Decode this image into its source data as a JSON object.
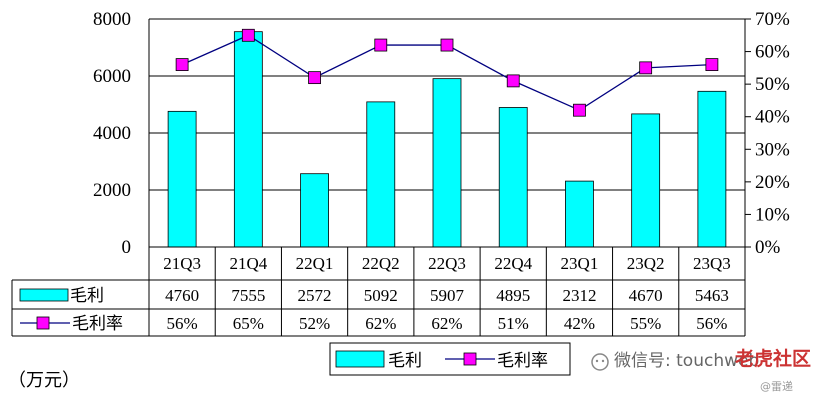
{
  "unit_label": "（万元）",
  "watermark": {
    "text": "微信号: touchweb",
    "brand": "老虎社区",
    "sub": "@雷递"
  },
  "colors": {
    "bar": "#00FFFF",
    "bar_stroke": "#000000",
    "line": "#000080",
    "marker": "#FF00FF"
  },
  "chart_data": {
    "type": "bar",
    "categories": [
      "21Q3",
      "21Q4",
      "22Q1",
      "22Q2",
      "22Q3",
      "22Q4",
      "23Q1",
      "23Q2",
      "23Q3"
    ],
    "series": [
      {
        "name": "毛利",
        "type": "bar",
        "axis": "left",
        "values": [
          4760,
          7555,
          2572,
          5092,
          5907,
          4895,
          2312,
          4670,
          5463
        ]
      },
      {
        "name": "毛利率",
        "type": "line",
        "axis": "right",
        "values": [
          56,
          65,
          52,
          62,
          62,
          51,
          42,
          55,
          56
        ],
        "labels": [
          "56%",
          "65%",
          "52%",
          "62%",
          "62%",
          "51%",
          "42%",
          "55%",
          "56%"
        ]
      }
    ],
    "y_left": {
      "min": 0,
      "max": 8000,
      "ticks": [
        "0",
        "2000",
        "4000",
        "6000",
        "8000"
      ]
    },
    "y_right": {
      "min": 0,
      "max": 70,
      "ticks": [
        "0%",
        "10%",
        "20%",
        "30%",
        "40%",
        "50%",
        "60%",
        "70%"
      ]
    },
    "legend": {
      "position": "bottom",
      "items": [
        "毛利",
        "毛利率"
      ]
    },
    "grid": true,
    "data_table": true
  }
}
